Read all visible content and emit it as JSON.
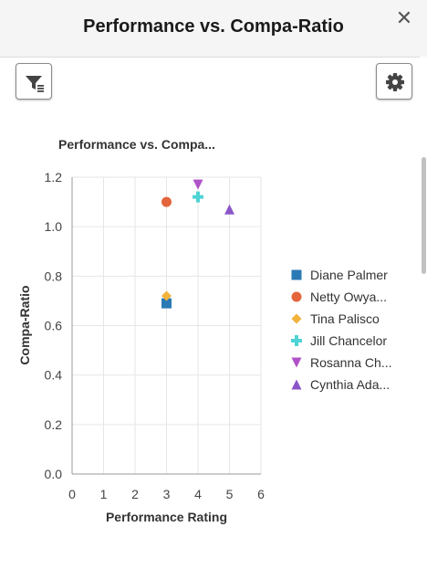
{
  "header": {
    "title": "Performance vs. Compa-Ratio",
    "close_glyph": "✕"
  },
  "toolbar": {
    "filter_icon": "filter-icon",
    "settings_icon": "gear-icon"
  },
  "chart_data": {
    "type": "scatter",
    "title": "Performance vs. Compa...",
    "xlabel": "Performance Rating",
    "ylabel": "Compa-Ratio",
    "xlim": [
      0,
      6
    ],
    "ylim": [
      0,
      1.2
    ],
    "xticks": [
      "0",
      "1",
      "2",
      "3",
      "4",
      "5",
      "6"
    ],
    "yticks": [
      "0.0",
      "0.2",
      "0.4",
      "0.6",
      "0.8",
      "1.0",
      "1.2"
    ],
    "grid": true,
    "legend_position": "right",
    "series": [
      {
        "name": "Diane Palmer",
        "marker": "square",
        "color": "#2a7ab5",
        "points": [
          [
            3,
            0.69
          ]
        ]
      },
      {
        "name": "Netty Owya...",
        "marker": "circle",
        "color": "#e4643c",
        "points": [
          [
            3,
            1.1
          ]
        ]
      },
      {
        "name": "Tina Palisco",
        "marker": "diamond",
        "color": "#f3b23b",
        "points": [
          [
            3,
            0.72
          ]
        ]
      },
      {
        "name": "Jill Chancelor",
        "marker": "plus",
        "color": "#4ed4d4",
        "points": [
          [
            4,
            1.12
          ]
        ]
      },
      {
        "name": "Rosanna Ch...",
        "marker": "triangle-down",
        "color": "#b052c8",
        "points": [
          [
            4,
            1.17
          ]
        ]
      },
      {
        "name": "Cynthia Ada...",
        "marker": "triangle-up",
        "color": "#8a56c8",
        "points": [
          [
            5,
            1.07
          ]
        ]
      }
    ]
  }
}
